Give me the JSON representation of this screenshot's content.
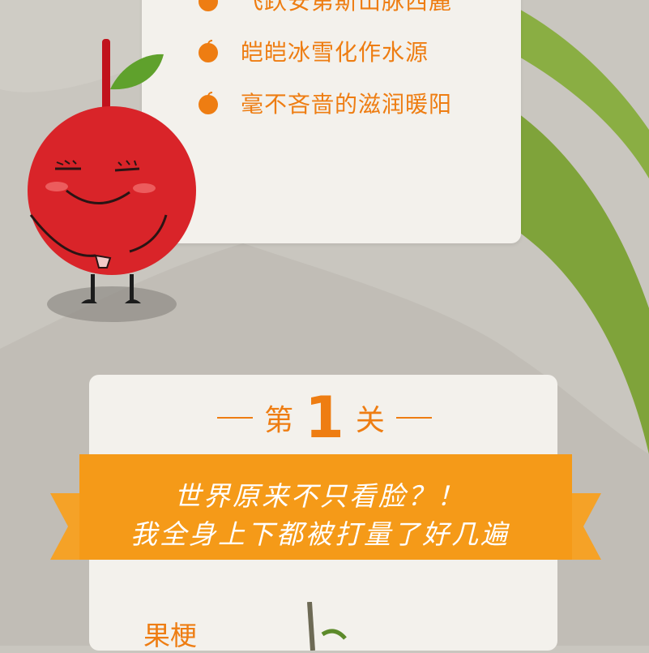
{
  "intro_card": {
    "bullets": [
      "飞跃安第斯山脉西麓",
      "皑皑冰雪化作水源",
      "毫不吝啬的滋润暖阳"
    ]
  },
  "mascot": {
    "name": "cherry-mascot"
  },
  "level": {
    "prefix": "第",
    "number": "1",
    "suffix": "关"
  },
  "banner": {
    "line1": "世界原来不只看脸？！",
    "line2": "我全身上下都被打量了好几遍"
  },
  "section": {
    "label": "果梗"
  },
  "colors": {
    "accent": "#ee7d12",
    "background": "#c9c6bf",
    "card": "#f3f1ec",
    "green": "#7fa33a",
    "cherry": "#d92429"
  }
}
